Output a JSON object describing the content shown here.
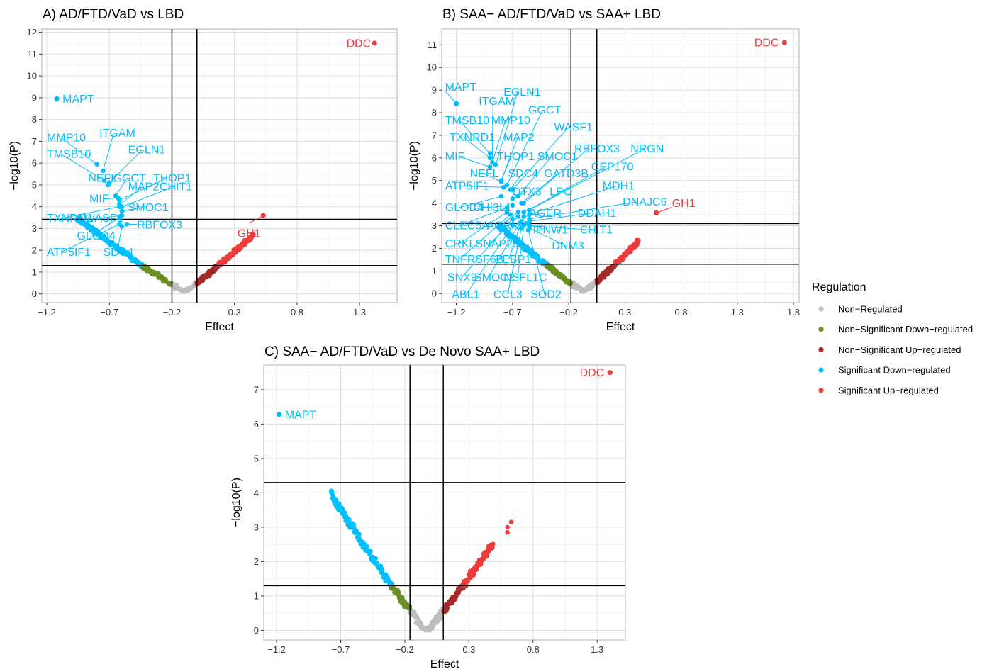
{
  "colors": {
    "Non-Regulated": "#bebebe",
    "Non-Significant Down-regulated": "#6b8e23",
    "Non-Significant Up-regulated": "#a52a2a",
    "Significant Down-regulated": "#00bfff",
    "Significant Up-regulated": "#ef3b3b"
  },
  "legend": {
    "title": "Regulation",
    "entries": [
      "Non−Regulated",
      "Non−Significant Down−regulated",
      "Non−Significant Up−regulated",
      "Significant Down−regulated",
      "Significant Up−regulated"
    ],
    "placement": "right"
  },
  "chart_data": [
    {
      "type": "scatter",
      "title": "A) AD/FTD/VaD vs LBD",
      "xlabel": "Effect",
      "ylabel": "−log10(P)",
      "x_ticks": [
        -1.2,
        -0.7,
        -0.2,
        0.3,
        0.8,
        1.3
      ],
      "x_tick_labels": [
        "−1.2",
        "−0.7",
        "−0.2",
        "0.3",
        "0.8",
        "1.3"
      ],
      "y_ticks": [
        0,
        1,
        2,
        3,
        4,
        5,
        6,
        7,
        8,
        9,
        10,
        11,
        12
      ],
      "xlim": [
        -1.24,
        1.6
      ],
      "ylim": [
        -0.4,
        12.15
      ],
      "vlines": [
        -0.2,
        0.0
      ],
      "hlines": [
        1.3,
        3.42
      ],
      "grid": true,
      "points": [
        {
          "gene": "DDC",
          "x": 1.42,
          "y": 11.5,
          "cat": "Significant Up-regulated",
          "label_dx": -5,
          "label_dy": 0,
          "anchor": "end"
        },
        {
          "gene": "MAPT",
          "x": -1.12,
          "y": 8.95,
          "cat": "Significant Down-regulated",
          "label_dx": 8,
          "label_dy": 0,
          "anchor": "start"
        },
        {
          "gene": "GH1",
          "x": 0.53,
          "y": 3.6,
          "cat": "Significant Up-regulated",
          "label_dx": -20,
          "label_dy": 25,
          "anchor": "middle"
        }
      ],
      "annotations": [
        {
          "gene": "MMP10",
          "lx": -1.2,
          "ly": 7.0,
          "px": -0.8,
          "py": 5.95
        },
        {
          "gene": "ITGAM",
          "lx": -0.78,
          "ly": 7.2,
          "px": -0.75,
          "py": 5.65
        },
        {
          "gene": "TMSB10",
          "lx": -1.2,
          "ly": 6.25,
          "px": -0.74,
          "py": 5.2
        },
        {
          "gene": "EGLN1",
          "lx": -0.55,
          "ly": 6.45,
          "px": -0.7,
          "py": 5.1
        },
        {
          "gene": "NEFL",
          "lx": -0.87,
          "ly": 5.15,
          "px": -0.71,
          "py": 5.0
        },
        {
          "gene": "GGCT",
          "lx": -0.67,
          "ly": 5.15,
          "px": -0.65,
          "py": 4.5
        },
        {
          "gene": "THOP1",
          "lx": -0.35,
          "ly": 5.15,
          "px": -0.62,
          "py": 4.3
        },
        {
          "gene": "MIF",
          "lx": -0.86,
          "ly": 4.2,
          "px": -0.63,
          "py": 4.4
        },
        {
          "gene": "MAP2",
          "lx": -0.55,
          "ly": 4.75,
          "px": -0.62,
          "py": 4.1
        },
        {
          "gene": "CHIT1",
          "lx": -0.3,
          "ly": 4.75,
          "px": -0.6,
          "py": 4.0
        },
        {
          "gene": "TXNRD1",
          "lx": -1.2,
          "ly": 3.3,
          "px": -0.62,
          "py": 4.0
        },
        {
          "gene": "SMOC1",
          "lx": -0.55,
          "ly": 3.8,
          "px": -0.6,
          "py": 3.8
        },
        {
          "gene": "WASF1",
          "lx": -0.9,
          "ly": 3.3,
          "px": -0.6,
          "py": 3.6
        },
        {
          "gene": "RBFOX3",
          "lx": -0.48,
          "ly": 3.0,
          "px": -0.56,
          "py": 3.2
        },
        {
          "gene": "GLOD4",
          "lx": -0.96,
          "ly": 2.5,
          "px": -0.62,
          "py": 3.5
        },
        {
          "gene": "ATP5IF1",
          "lx": -1.2,
          "ly": 1.75,
          "px": -0.62,
          "py": 3.2
        },
        {
          "gene": "SDC4",
          "lx": -0.75,
          "ly": 1.75,
          "px": -0.6,
          "py": 3.1
        }
      ],
      "curve": {
        "a": -0.95,
        "b": 0.45,
        "ymax_left": 3.45,
        "ymax_right": 2.7,
        "tip_y": 0.12
      }
    },
    {
      "type": "scatter",
      "title": "B) SAA− AD/FTD/VaD vs SAA+ LBD",
      "xlabel": "Effect",
      "ylabel": "−log10(P)",
      "x_ticks": [
        -1.2,
        -0.7,
        -0.2,
        0.3,
        0.8,
        1.3,
        1.8
      ],
      "x_tick_labels": [
        "−1.2",
        "−0.7",
        "−0.2",
        "0.3",
        "0.8",
        "1.3",
        "1.8"
      ],
      "y_ticks": [
        0,
        1,
        2,
        3,
        4,
        5,
        6,
        7,
        8,
        9,
        10,
        11
      ],
      "xlim": [
        -1.33,
        1.85
      ],
      "ylim": [
        -0.4,
        11.7
      ],
      "vlines": [
        -0.18,
        0.05
      ],
      "hlines": [
        1.3,
        3.1
      ],
      "grid": true,
      "points": [
        {
          "gene": "DDC",
          "x": 1.72,
          "y": 11.1,
          "cat": "Significant Up-regulated",
          "label_dx": -8,
          "label_dy": 0,
          "anchor": "end"
        },
        {
          "gene": "MAPT",
          "x": -1.2,
          "y": 8.4,
          "cat": "Significant Down-regulated",
          "label_dx": -16,
          "label_dy": -24,
          "anchor": "start"
        },
        {
          "gene": "GH1",
          "x": 0.58,
          "y": 3.57,
          "cat": "Significant Up-regulated",
          "label_dx": 22,
          "label_dy": -14,
          "anchor": "start"
        }
      ],
      "annotations": [
        {
          "gene": "ITGAM",
          "lx": -1.0,
          "ly": 8.35,
          "px": -0.88,
          "py": 5.8
        },
        {
          "gene": "EGLN1",
          "lx": -0.78,
          "ly": 8.75,
          "px": -0.85,
          "py": 5.7
        },
        {
          "gene": "TMSB10",
          "lx": -1.3,
          "ly": 7.5,
          "px": -0.9,
          "py": 6.2
        },
        {
          "gene": "MMP10",
          "lx": -0.89,
          "ly": 7.5,
          "px": -0.88,
          "py": 5.8
        },
        {
          "gene": "GGCT",
          "lx": -0.56,
          "ly": 7.95,
          "px": -0.75,
          "py": 4.8
        },
        {
          "gene": "TXNRD1",
          "lx": -1.26,
          "ly": 6.75,
          "px": -0.9,
          "py": 6.0
        },
        {
          "gene": "MAP2",
          "lx": -0.78,
          "ly": 6.75,
          "px": -0.8,
          "py": 5.0
        },
        {
          "gene": "WASF1",
          "lx": -0.33,
          "ly": 7.2,
          "px": -0.7,
          "py": 4.6
        },
        {
          "gene": "MIF",
          "lx": -1.3,
          "ly": 5.9,
          "px": -0.9,
          "py": 5.6
        },
        {
          "gene": "THOP1",
          "lx": -0.84,
          "ly": 5.9,
          "px": -0.8,
          "py": 5.0
        },
        {
          "gene": "SMOC1",
          "lx": -0.48,
          "ly": 5.9,
          "px": -0.65,
          "py": 4.3
        },
        {
          "gene": "RBFOX3",
          "lx": -0.15,
          "ly": 6.25,
          "px": -0.6,
          "py": 4.0
        },
        {
          "gene": "NRGN",
          "lx": 0.35,
          "ly": 6.25,
          "px": -0.55,
          "py": 3.7
        },
        {
          "gene": "NEFL",
          "lx": -1.08,
          "ly": 5.15,
          "px": -0.8,
          "py": 4.95
        },
        {
          "gene": "SDC4",
          "lx": -0.74,
          "ly": 5.15,
          "px": -0.72,
          "py": 4.6
        },
        {
          "gene": "GATD3B",
          "lx": -0.42,
          "ly": 5.15,
          "px": -0.62,
          "py": 4.0
        },
        {
          "gene": "CEP170",
          "lx": 0.0,
          "ly": 5.45,
          "px": -0.55,
          "py": 3.7
        },
        {
          "gene": "ATP5IF1",
          "lx": -1.3,
          "ly": 4.6,
          "px": -0.78,
          "py": 4.7
        },
        {
          "gene": "MDH1",
          "lx": 0.1,
          "ly": 4.6,
          "px": -0.55,
          "py": 3.5
        },
        {
          "gene": "DTX3",
          "lx": -0.7,
          "ly": 4.35,
          "px": -0.7,
          "py": 4.2
        },
        {
          "gene": "LPO",
          "lx": -0.37,
          "ly": 4.35,
          "px": -0.6,
          "py": 3.6
        },
        {
          "gene": "DNAJC6",
          "lx": 0.28,
          "ly": 3.9,
          "px": -0.55,
          "py": 3.3
        },
        {
          "gene": "GLOD4",
          "lx": -1.3,
          "ly": 3.65,
          "px": -0.8,
          "py": 4.3
        },
        {
          "gene": "CHI3L1",
          "lx": -1.05,
          "ly": 3.65,
          "px": -0.7,
          "py": 3.9
        },
        {
          "gene": "AGER",
          "lx": -0.55,
          "ly": 3.4,
          "px": -0.6,
          "py": 3.4
        },
        {
          "gene": "DDAH1",
          "lx": -0.12,
          "ly": 3.4,
          "px": -0.55,
          "py": 3.2
        },
        {
          "gene": "CLEC5A",
          "lx": -1.3,
          "ly": 2.85,
          "px": -0.75,
          "py": 3.8
        },
        {
          "gene": "AGRN",
          "lx": -0.93,
          "ly": 2.85,
          "px": -0.65,
          "py": 3.6
        },
        {
          "gene": "IFNW1",
          "lx": -0.52,
          "ly": 2.65,
          "px": -0.58,
          "py": 3.1
        },
        {
          "gene": "CHIT1",
          "lx": -0.1,
          "ly": 2.65,
          "px": -0.55,
          "py": 3.0
        },
        {
          "gene": "CRKL",
          "lx": -1.3,
          "ly": 2.05,
          "px": -0.75,
          "py": 3.6
        },
        {
          "gene": "SNAP29",
          "lx": -1.03,
          "ly": 2.05,
          "px": -0.65,
          "py": 3.4
        },
        {
          "gene": "DNM3",
          "lx": -0.35,
          "ly": 1.95,
          "px": -0.55,
          "py": 2.9
        },
        {
          "gene": "TNFRSF6B",
          "lx": -1.3,
          "ly": 1.35,
          "px": -0.72,
          "py": 3.5
        },
        {
          "gene": "PEBP1",
          "lx": -0.86,
          "ly": 1.35,
          "px": -0.62,
          "py": 3.2
        },
        {
          "gene": "SNX9",
          "lx": -1.28,
          "ly": 0.55,
          "px": -0.7,
          "py": 3.3
        },
        {
          "gene": "SMOC2",
          "lx": -1.04,
          "ly": 0.55,
          "px": -0.64,
          "py": 3.1
        },
        {
          "gene": "NSFL1C",
          "lx": -0.78,
          "ly": 0.55,
          "px": -0.6,
          "py": 3.0
        },
        {
          "gene": "ABL1",
          "lx": -1.24,
          "ly": -0.2,
          "px": -0.7,
          "py": 3.0
        },
        {
          "gene": "CCL3",
          "lx": -0.87,
          "ly": -0.2,
          "px": -0.62,
          "py": 2.9
        },
        {
          "gene": "SOD2",
          "lx": -0.54,
          "ly": -0.2,
          "px": -0.56,
          "py": 2.8
        }
      ],
      "curve": {
        "a": -0.82,
        "b": 0.42,
        "ymax_left": 3.0,
        "ymax_right": 2.3,
        "tip_y": 0.1
      }
    },
    {
      "type": "scatter",
      "title": "C) SAA− AD/FTD/VaD vs De Novo SAA+ LBD",
      "xlabel": "Effect",
      "ylabel": "−log10(P)",
      "x_ticks": [
        -1.2,
        -0.7,
        -0.2,
        0.3,
        0.8,
        1.3
      ],
      "x_tick_labels": [
        "−1.2",
        "−0.7",
        "−0.2",
        "0.3",
        "0.8",
        "1.3"
      ],
      "y_ticks": [
        0,
        1,
        2,
        3,
        4,
        5,
        6,
        7
      ],
      "xlim": [
        -1.3,
        1.52
      ],
      "ylim": [
        -0.28,
        7.72
      ],
      "vlines": [
        -0.16,
        0.1
      ],
      "hlines": [
        1.3,
        4.3
      ],
      "grid": true,
      "points": [
        {
          "gene": "DDC",
          "x": 1.4,
          "y": 7.5,
          "cat": "Significant Up-regulated",
          "label_dx": -8,
          "label_dy": 0,
          "anchor": "end"
        },
        {
          "gene": "MAPT",
          "x": -1.18,
          "y": 6.28,
          "cat": "Significant Down-regulated",
          "label_dx": 8,
          "label_dy": 0,
          "anchor": "start"
        }
      ],
      "annotations": [],
      "curve": {
        "a": -0.78,
        "b": 0.48,
        "ymax_left": 4.0,
        "ymax_right": 2.5,
        "tip_y": 0.0,
        "extra_up": [
          [
            0.6,
            3.0
          ],
          [
            0.63,
            3.15
          ],
          [
            0.6,
            2.85
          ]
        ]
      }
    }
  ]
}
